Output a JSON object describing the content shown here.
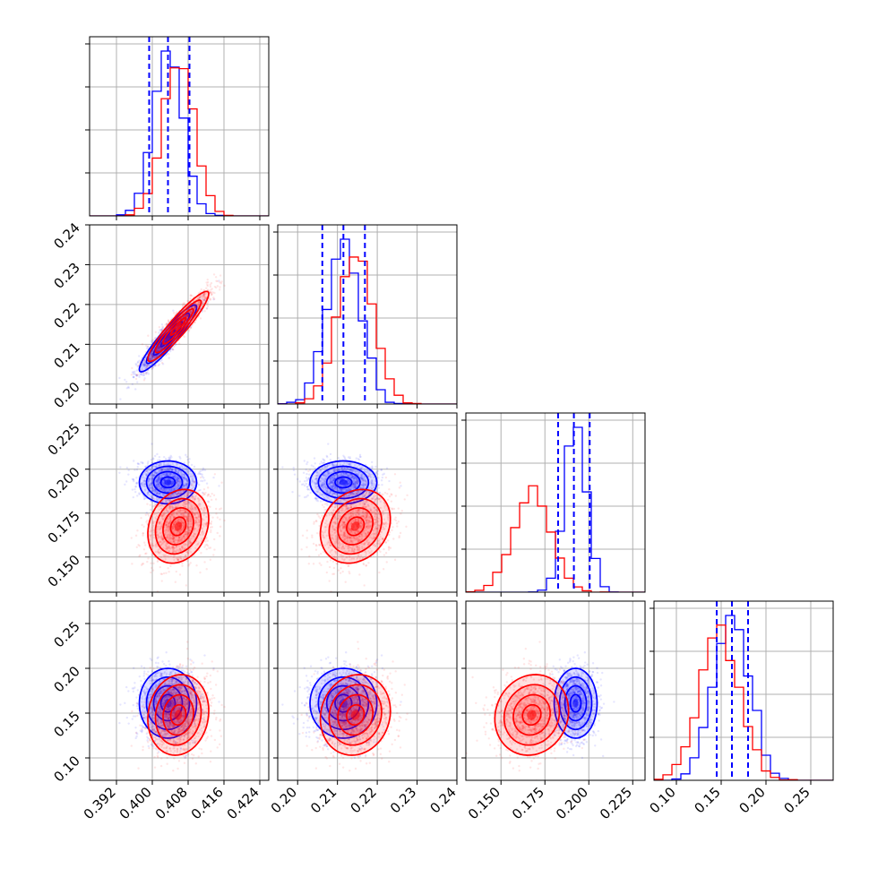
{
  "colors": {
    "series_a": "#0000ff",
    "series_b": "#ff0000",
    "grid": "#b0b0b0"
  },
  "chart_data": {
    "type": "corner",
    "grid": true,
    "legend": "none",
    "n_params": 4,
    "ranges": [
      [
        0.386,
        0.426
      ],
      [
        0.195,
        0.24
      ],
      [
        0.13,
        0.232
      ],
      [
        0.075,
        0.275
      ]
    ],
    "ticks": [
      [
        0.392,
        0.4,
        0.408,
        0.416,
        0.424
      ],
      [
        0.2,
        0.21,
        0.22,
        0.23,
        0.24
      ],
      [
        0.15,
        0.175,
        0.2,
        0.225
      ],
      [
        0.1,
        0.15,
        0.2,
        0.25
      ]
    ],
    "tick_labels": [
      [
        "0.392",
        "0.400",
        "0.408",
        "0.416",
        "0.424"
      ],
      [
        "0.20",
        "0.21",
        "0.22",
        "0.23",
        "0.24"
      ],
      [
        "0.150",
        "0.175",
        "0.200",
        "0.225"
      ],
      [
        "0.10",
        "0.15",
        "0.20",
        "0.25"
      ]
    ],
    "quantiles": [
      [
        0.3993,
        0.4035,
        0.4083
      ],
      [
        0.2062,
        0.2115,
        0.2169
      ],
      [
        0.1825,
        0.1915,
        0.2005
      ],
      [
        0.145,
        0.162,
        0.18
      ]
    ],
    "series": [
      {
        "color": "#0000ff",
        "mean": [
          0.4035,
          0.2115,
          0.1925,
          0.161
        ],
        "sd": [
          0.0032,
          0.0042,
          0.0061,
          0.0195
        ],
        "corr": [
          [
            1,
            0.93,
            0,
            0
          ],
          [
            0.93,
            1,
            0,
            0
          ],
          [
            0,
            0,
            1,
            0
          ],
          [
            0,
            0,
            0,
            1
          ]
        ]
      },
      {
        "color": "#ff0000",
        "mean": [
          0.4058,
          0.2145,
          0.1675,
          0.148
        ],
        "sd": [
          0.0034,
          0.0044,
          0.0105,
          0.0225
        ],
        "corr": [
          [
            1,
            0.93,
            0.2,
            0.1
          ],
          [
            0.93,
            1,
            0.2,
            0.1
          ],
          [
            0.2,
            0.2,
            1,
            0.1
          ],
          [
            0.1,
            0.1,
            0.1,
            1
          ]
        ]
      }
    ]
  }
}
